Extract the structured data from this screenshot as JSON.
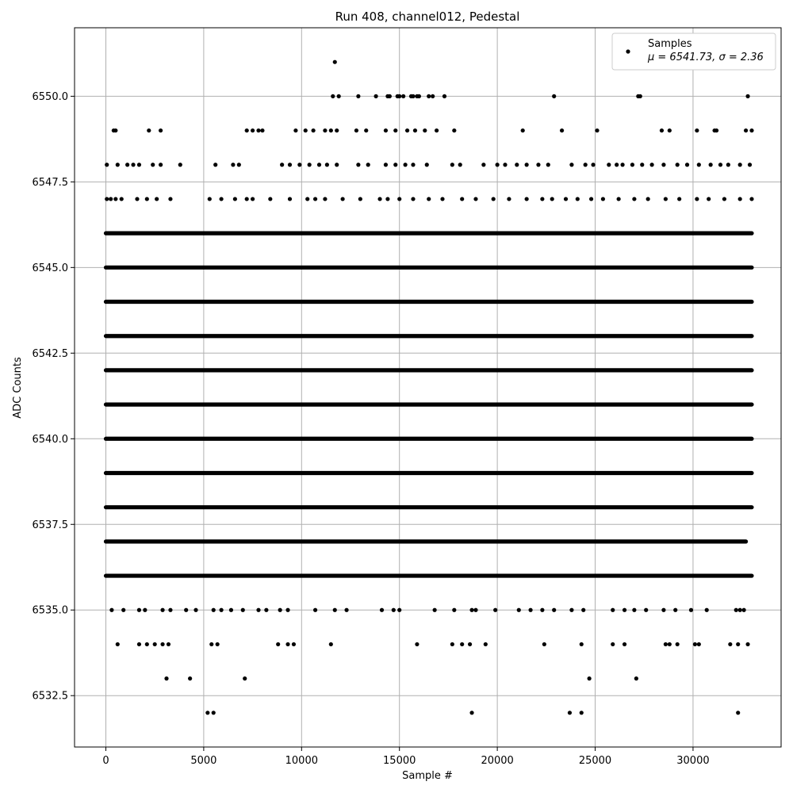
{
  "chart_data": {
    "type": "scatter",
    "title": "Run 408, channel012, Pedestal",
    "xlabel": "Sample #",
    "ylabel": "ADC Counts",
    "xlim": [
      -1600,
      34500
    ],
    "ylim": [
      6531.0,
      6552.0
    ],
    "xticks": [
      0,
      5000,
      10000,
      15000,
      20000,
      25000,
      30000
    ],
    "xtick_labels": [
      "0",
      "5000",
      "10000",
      "15000",
      "20000",
      "25000",
      "30000"
    ],
    "yticks": [
      6532.5,
      6535.0,
      6537.5,
      6540.0,
      6542.5,
      6545.0,
      6547.5,
      6550.0
    ],
    "ytick_labels": [
      "6532.5",
      "6535.0",
      "6537.5",
      "6540.0",
      "6542.5",
      "6545.0",
      "6547.5",
      "6550.0"
    ],
    "grid": true,
    "legend": {
      "placement": "top-right",
      "entries": [
        {
          "name": "Samples",
          "detail": "μ = 6541.73, σ = 2.36"
        }
      ]
    },
    "colors": {
      "marker": "#000000",
      "grid": "#b0b0b0",
      "axes": "#000000"
    },
    "series": [
      {
        "name": "Samples",
        "x_range": [
          0,
          33000
        ],
        "levels": [
          {
            "y": 6551,
            "x": [
              11700
            ]
          },
          {
            "y": 6550,
            "x": [
              11600,
              11900,
              12900,
              13800,
              14400,
              14500,
              14900,
              15000,
              15200,
              15600,
              15700,
              15900,
              16000,
              16500,
              16700,
              17300,
              22900,
              27200,
              27300,
              32800
            ]
          },
          {
            "y": 6549,
            "x": [
              400,
              500,
              2200,
              2800,
              7200,
              7500,
              7800,
              8000,
              9700,
              10200,
              10600,
              11200,
              11500,
              11800,
              12800,
              13300,
              14300,
              14800,
              15400,
              15800,
              16300,
              16900,
              17800,
              21300,
              23300,
              25100,
              28400,
              28800,
              30200,
              31100,
              31200,
              32700,
              33000
            ]
          },
          {
            "y": 6548,
            "x": [
              50,
              600,
              1100,
              1400,
              1700,
              2400,
              2800,
              3800,
              5600,
              6500,
              6800,
              9000,
              9400,
              9900,
              10400,
              10900,
              11300,
              11800,
              12900,
              13400,
              14300,
              14800,
              15300,
              15700,
              16400,
              17700,
              18100,
              19300,
              20000,
              20400,
              21000,
              21500,
              22100,
              22600,
              23800,
              24500,
              24900,
              25700,
              26100,
              26400,
              26900,
              27400,
              27900,
              28500,
              29200,
              29700,
              30300,
              30900,
              31400,
              31800,
              32400,
              32900
            ]
          },
          {
            "y": 6547,
            "x": [
              50,
              250,
              500,
              800,
              1600,
              2100,
              2600,
              3300,
              5300,
              5900,
              6600,
              7200,
              7500,
              8400,
              9400,
              10300,
              10700,
              11200,
              12100,
              13000,
              14000,
              14400,
              15000,
              15700,
              16500,
              17200,
              18200,
              18900,
              19800,
              20600,
              21500,
              22300,
              22800,
              23500,
              24100,
              24800,
              25400,
              26200,
              27000,
              27700,
              28600,
              29300,
              30200,
              30800,
              31600,
              32400,
              33000
            ]
          },
          {
            "y": 6546,
            "x": [
              0,
              33000
            ]
          },
          {
            "y": 6545,
            "x": [
              0,
              33000
            ]
          },
          {
            "y": 6544,
            "x": [
              0,
              33000
            ]
          },
          {
            "y": 6543,
            "x": [
              0,
              33000
            ]
          },
          {
            "y": 6542,
            "x": [
              0,
              33000
            ]
          },
          {
            "y": 6541,
            "x": [
              0,
              33000
            ]
          },
          {
            "y": 6540,
            "x": [
              0,
              33000
            ]
          },
          {
            "y": 6539,
            "x": [
              0,
              33000
            ]
          },
          {
            "y": 6538,
            "x": [
              0,
              33000
            ]
          },
          {
            "y": 6537,
            "x": [
              0,
              32700
            ]
          },
          {
            "y": 6536,
            "x": [
              0,
              33000
            ]
          },
          {
            "y": 6535,
            "x": [
              300,
              900,
              1700,
              2000,
              2900,
              3300,
              4100,
              4600,
              5500,
              5900,
              6400,
              7000,
              7800,
              8200,
              8900,
              9300,
              10700,
              11700,
              12300,
              14100,
              14700,
              15000,
              16800,
              17800,
              18700,
              18900,
              19900,
              21100,
              21700,
              22300,
              22900,
              23800,
              24400,
              25900,
              26500,
              27000,
              27600,
              28500,
              29100,
              29900,
              30700,
              32200,
              32400,
              32600
            ]
          },
          {
            "y": 6534,
            "x": [
              600,
              1700,
              2100,
              2500,
              2900,
              3200,
              5400,
              5700,
              8800,
              9300,
              9600,
              11500,
              15900,
              17700,
              18200,
              18600,
              19400,
              22400,
              24300,
              25900,
              26500,
              28600,
              28800,
              29200,
              30100,
              30300,
              31900,
              32300,
              32800
            ]
          },
          {
            "y": 6533,
            "x": [
              3100,
              4300,
              7100,
              24700,
              27100
            ]
          },
          {
            "y": 6532,
            "x": [
              5200,
              5500,
              18700,
              23700,
              24300,
              32300
            ]
          }
        ]
      }
    ]
  }
}
